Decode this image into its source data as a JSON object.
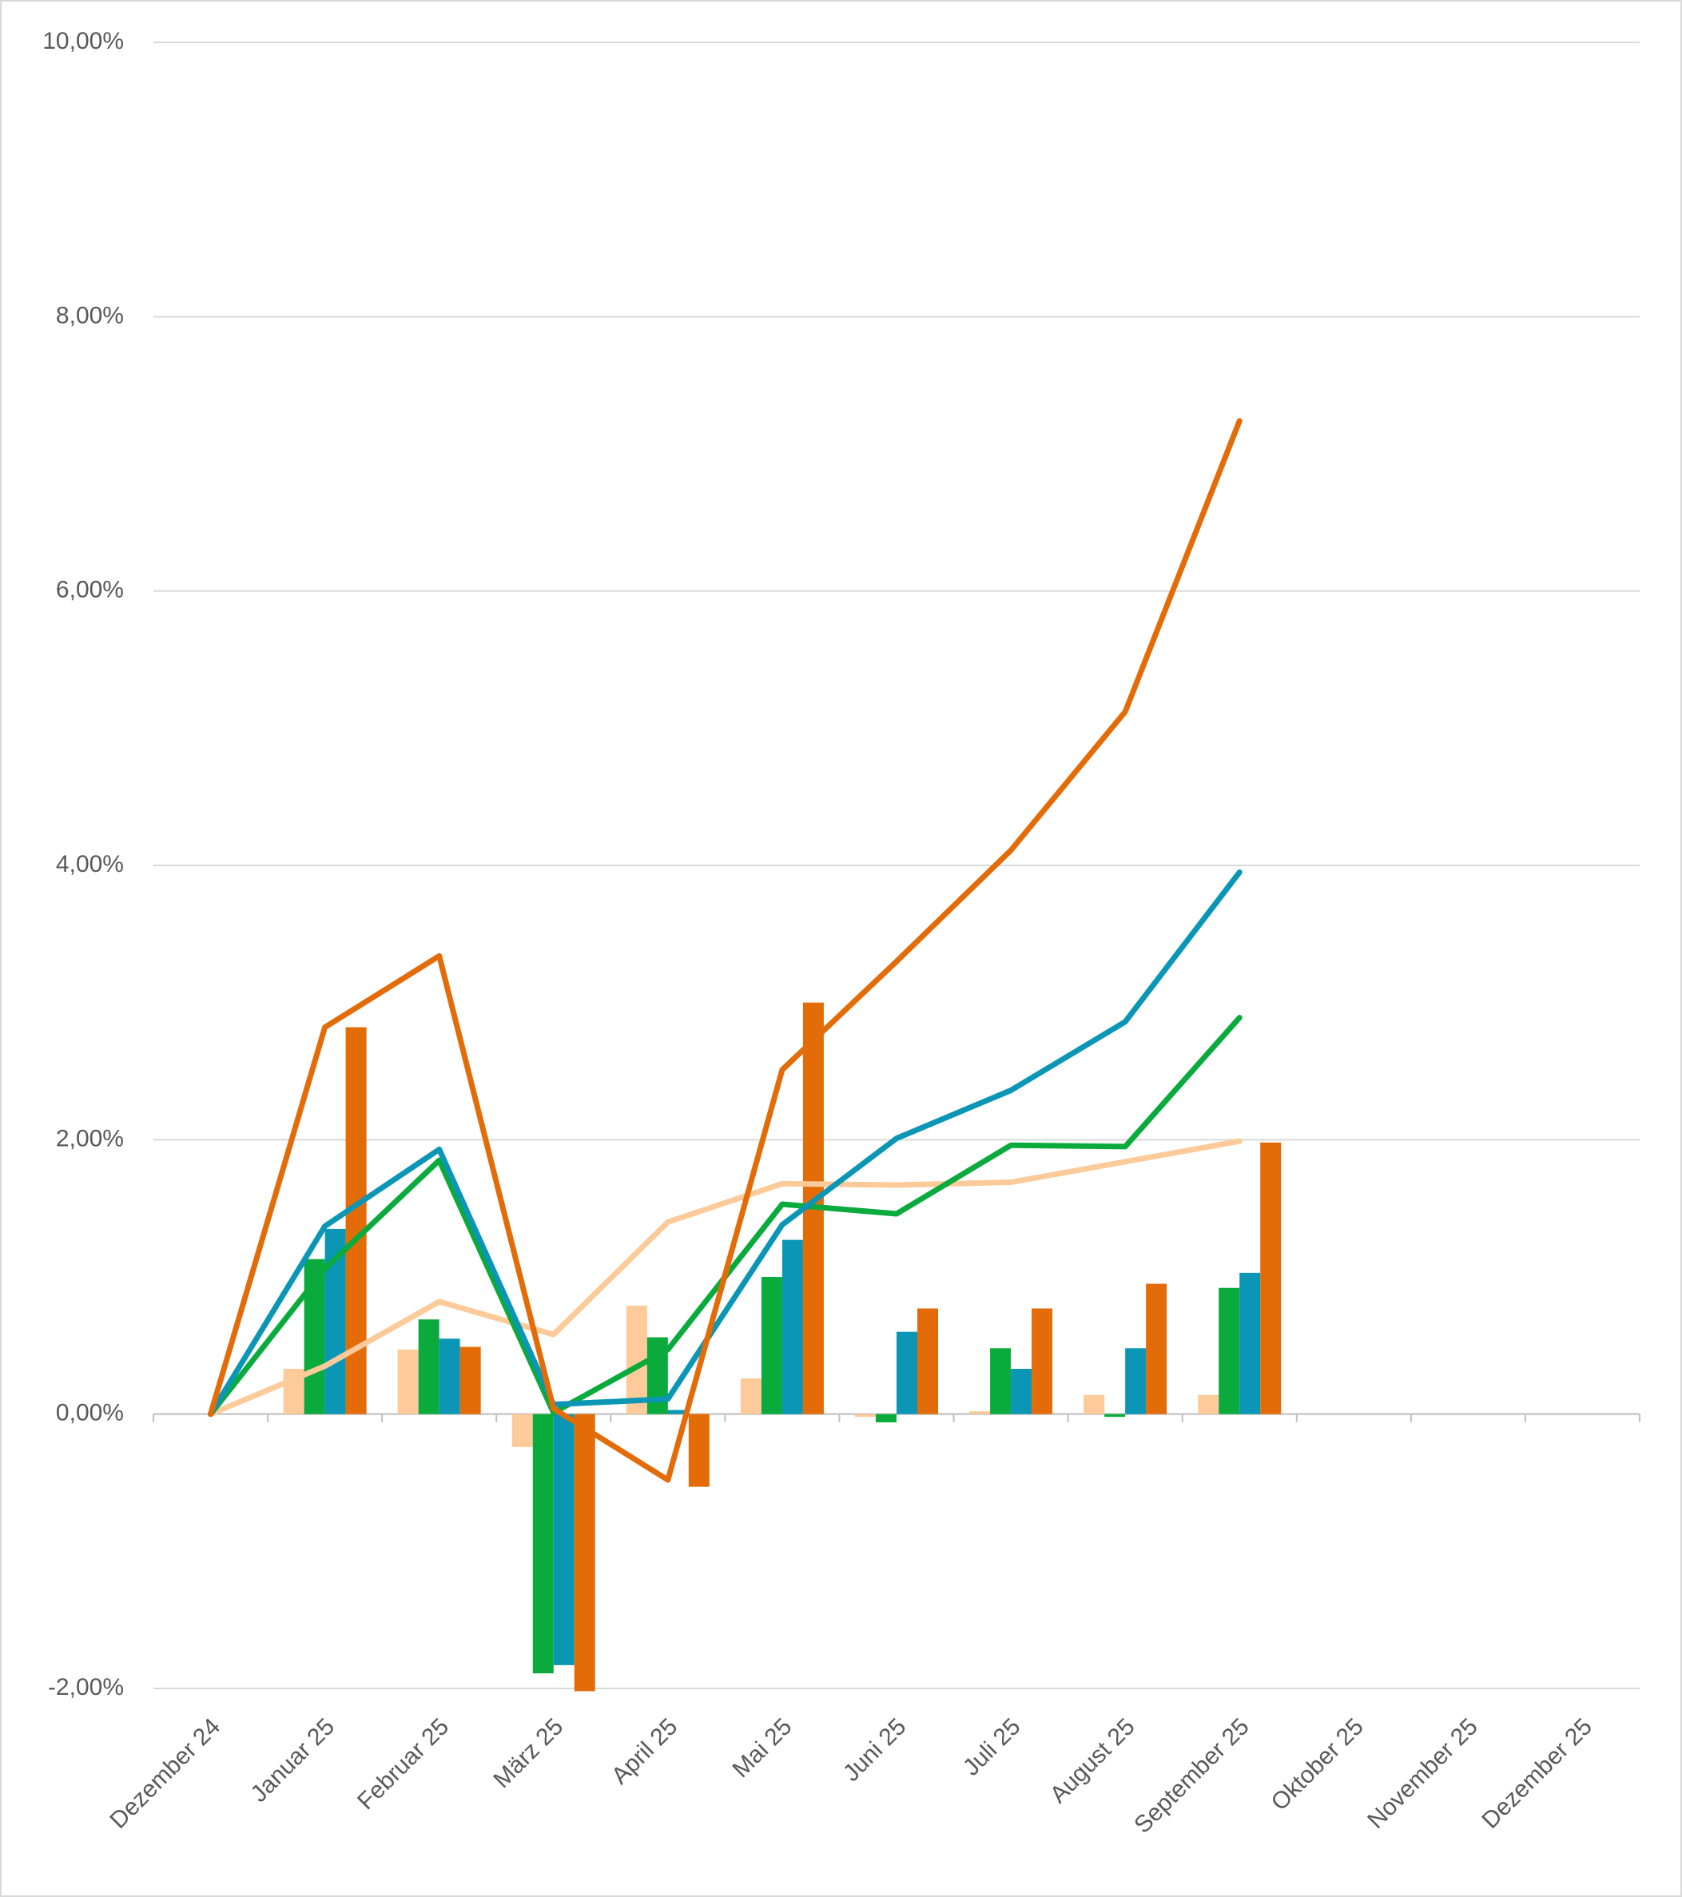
{
  "chart_data": {
    "type": "combo",
    "categories": [
      "Dezember 24",
      "Januar 25",
      "Februar 25",
      "März 25",
      "April 25",
      "Mai 25",
      "Juni 25",
      "Juli 25",
      "August 25",
      "September 25",
      "Oktober 25",
      "November 25",
      "Dezember 25"
    ],
    "series": [
      {
        "type": "bar",
        "color": "#fdca99",
        "values": [
          null,
          0.33,
          0.47,
          -0.24,
          0.79,
          0.26,
          -0.02,
          0.02,
          0.14,
          0.14,
          null,
          null,
          null
        ]
      },
      {
        "type": "bar",
        "color": "#0aab3c",
        "values": [
          null,
          1.13,
          0.69,
          -1.89,
          0.56,
          1.0,
          -0.06,
          0.48,
          -0.02,
          0.92,
          null,
          null,
          null
        ]
      },
      {
        "type": "bar",
        "color": "#0a96b4",
        "values": [
          null,
          1.35,
          0.55,
          -1.83,
          0.03,
          1.27,
          0.6,
          0.33,
          0.48,
          1.03,
          null,
          null,
          null
        ]
      },
      {
        "type": "bar",
        "color": "#e36c09",
        "values": [
          null,
          2.82,
          0.49,
          -2.02,
          -0.53,
          3.0,
          0.77,
          0.77,
          0.95,
          1.98,
          null,
          null,
          null
        ]
      },
      {
        "type": "line",
        "color": "#fdca99",
        "values": [
          0,
          0.35,
          0.82,
          0.58,
          1.4,
          1.68,
          1.67,
          1.69,
          1.84,
          1.99,
          null,
          null,
          null
        ]
      },
      {
        "type": "line",
        "color": "#0aab3c",
        "values": [
          0,
          1.06,
          1.85,
          0.01,
          0.47,
          1.53,
          1.46,
          1.96,
          1.95,
          2.89,
          null,
          null,
          null
        ]
      },
      {
        "type": "line",
        "color": "#0a96b4",
        "values": [
          0,
          1.37,
          1.93,
          0.07,
          0.11,
          1.38,
          2.01,
          2.36,
          2.86,
          3.95,
          null,
          null,
          null
        ]
      },
      {
        "type": "line",
        "color": "#e36c09",
        "values": [
          0,
          2.82,
          3.34,
          0.04,
          -0.48,
          2.51,
          3.3,
          4.11,
          5.12,
          7.24,
          null,
          null,
          null
        ]
      }
    ],
    "ylim": [
      -2,
      10
    ],
    "yticks": [
      {
        "value": -2,
        "label": "-2,00%"
      },
      {
        "value": 0,
        "label": "0,00%"
      },
      {
        "value": 2,
        "label": "2,00%"
      },
      {
        "value": 4,
        "label": "4,00%"
      },
      {
        "value": 6,
        "label": "6,00%"
      },
      {
        "value": 8,
        "label": "8,00%"
      },
      {
        "value": 10,
        "label": "10,00%"
      }
    ],
    "grid": true
  }
}
